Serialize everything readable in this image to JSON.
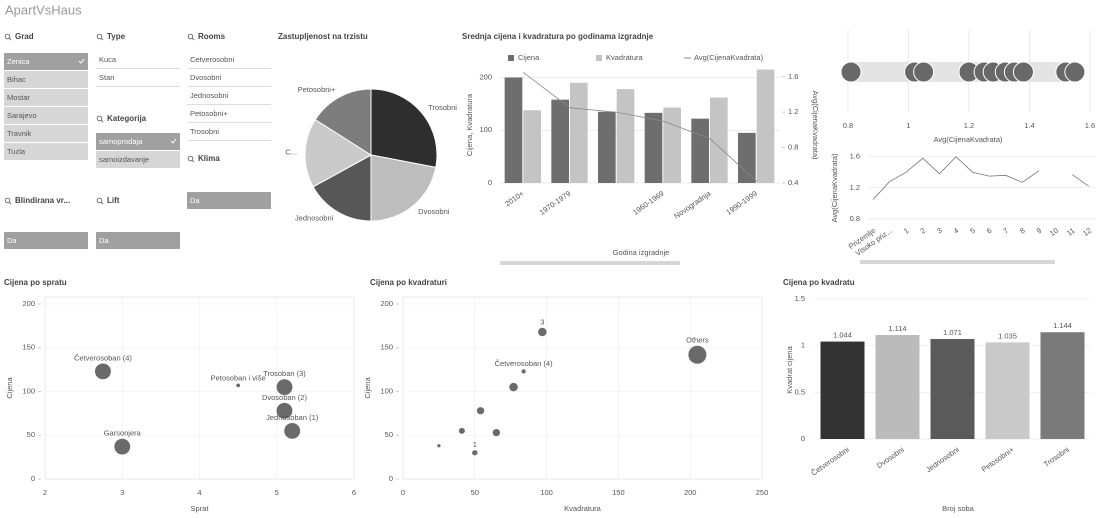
{
  "header": {
    "title": "ApartVsHaus"
  },
  "filters": [
    {
      "title": "Grad",
      "items": [
        "Zenica",
        "Bihac",
        "Mostar",
        "Sarajevo",
        "Travnik",
        "Tuzla"
      ],
      "states": [
        "selected",
        "excluded",
        "excluded",
        "excluded",
        "excluded",
        "excluded"
      ]
    },
    {
      "title": "Type",
      "items": [
        "Kuca",
        "Stan"
      ],
      "states": [
        "possible",
        "possible"
      ]
    },
    {
      "title": "Rooms",
      "items": [
        "Cetverosobni",
        "Dvosobni",
        "Jednosobni",
        "Petosobni+",
        "Trosobni"
      ],
      "states": [
        "possible",
        "possible",
        "possible",
        "possible",
        "possible"
      ]
    },
    {
      "title": "Kategorija",
      "items": [
        "samoprodaja",
        "samoizdavanje"
      ],
      "states": [
        "selected",
        "excluded"
      ]
    },
    {
      "title": "Klima",
      "items": [
        "Da"
      ],
      "states": [
        "selected"
      ]
    },
    {
      "title": "Blindirana vr...",
      "items": [
        "Da"
      ],
      "states": [
        "selected"
      ]
    },
    {
      "title": "Lift",
      "items": [
        "Da"
      ],
      "states": [
        "selected"
      ]
    }
  ],
  "chart_data": [
    {
      "type": "pie",
      "title": "Zastupljenost na trzistu",
      "categories": [
        "Trosobni",
        "Dvosobni",
        "Jednosobni",
        "C...",
        "Petosobni+"
      ],
      "values": [
        28,
        22,
        17,
        17,
        16
      ],
      "colors": [
        "#2e2e2e",
        "#bdbdbd",
        "#575757",
        "#cacaca",
        "#7d7d7d"
      ]
    },
    {
      "type": "combo",
      "title": "Srednja cijena i kvadratura po godinama izgradnje",
      "categories": [
        "2010+",
        "1970-1979",
        null,
        "1960-1969",
        "Novogradnja",
        "1990-1999"
      ],
      "series": [
        {
          "name": "Cijena",
          "color": "#6e6e6e",
          "kind": "bar",
          "values": [
            200,
            158,
            135,
            133,
            122,
            95
          ]
        },
        {
          "name": "Kvadratura",
          "color": "#c4c4c4",
          "kind": "bar",
          "values": [
            138,
            190,
            178,
            143,
            162,
            215
          ]
        },
        {
          "name": "Avg(CijenaKvadrata)",
          "color": "#8a8a8a",
          "kind": "line",
          "axis": "y2",
          "values": [
            1.65,
            1.25,
            1.2,
            1.1,
            0.9,
            0.42
          ]
        }
      ],
      "ylim": [
        0,
        218
      ],
      "yticks": [
        0,
        100,
        200
      ],
      "y2lim": [
        0.4,
        1.7
      ],
      "y2ticks": [
        0.4,
        0.8,
        1.2,
        1.6
      ],
      "ylabel": "Cijena, Kvadratura",
      "y2label": "Avg(CijenaKvadrata)",
      "xlabel": "Godina izgradnje"
    },
    {
      "type": "distribution",
      "values": [
        0.81,
        1.02,
        1.05,
        1.2,
        1.25,
        1.28,
        1.32,
        1.35,
        1.38,
        1.52,
        1.55
      ],
      "color": "#686868",
      "xlim": [
        0.8,
        1.6
      ],
      "xticks": [
        0.8,
        1,
        1.2,
        1.4,
        1.6
      ],
      "xlabel": "Avg(CijenaKvadrata)"
    },
    {
      "type": "line",
      "categories": [
        "Prizemlje",
        "Visoko priz...",
        "1",
        "2",
        "3",
        "4",
        "5",
        "6",
        "7",
        "8",
        "9",
        "10",
        "11",
        "12"
      ],
      "values": [
        1.05,
        1.28,
        1.4,
        1.58,
        1.38,
        1.6,
        1.4,
        1.35,
        1.36,
        1.27,
        1.42,
        null,
        1.37,
        1.22
      ],
      "color": "#777777",
      "ylim": [
        0.76,
        1.66
      ],
      "yticks": [
        0.8,
        1.2,
        1.6
      ],
      "ylabel": "Avg(CijenaKvadrata)"
    },
    {
      "type": "scatter",
      "title": "Cijena po spratu",
      "x": [
        2.75,
        3,
        4.5,
        5.1,
        5.1,
        5.2
      ],
      "values": [
        123,
        37,
        107,
        105,
        78,
        55
      ],
      "sizes": [
        7,
        7,
        0.4,
        7,
        7,
        7
      ],
      "labels": [
        "Četverosoban (4)",
        "Garsonjera",
        "Petosoban i više",
        "Trosoban (3)",
        "Dvosoban (2)",
        "Jednosoban (1)"
      ],
      "color": "#6a6a6a",
      "xlim": [
        2,
        6
      ],
      "xticks": [
        2,
        3,
        4,
        5,
        6
      ],
      "ylim": [
        0,
        208
      ],
      "yticks": [
        0,
        50,
        100,
        150,
        200
      ],
      "xlabel": "Sprat",
      "ylabel": "Cijena"
    },
    {
      "type": "scatter",
      "title": "Cijena po kvadraturi",
      "x": [
        97,
        84,
        77,
        54,
        41,
        65,
        50,
        25,
        205
      ],
      "values": [
        168,
        123,
        105,
        78,
        55,
        53,
        30,
        38,
        142
      ],
      "sizes": [
        2,
        0.5,
        2,
        1.5,
        1,
        1.5,
        0.8,
        0.3,
        9
      ],
      "labels": [
        "3",
        "Četverosoban (4)",
        null,
        null,
        null,
        null,
        "1",
        null,
        "Others"
      ],
      "color": "#6a6a6a",
      "xlim": [
        0,
        250
      ],
      "xticks": [
        0,
        50,
        100,
        150,
        200,
        250
      ],
      "ylim": [
        0,
        208
      ],
      "yticks": [
        0,
        50,
        100,
        150,
        200
      ],
      "xlabel": "Kvadratura",
      "ylabel": "Cijena"
    },
    {
      "type": "bar",
      "title": "Cijena po kvadratu",
      "categories": [
        "Četverosobni",
        "Dvosobni",
        "Jednosobni",
        "Petosobni+",
        "Trosobni"
      ],
      "values": [
        1.044,
        1.114,
        1.071,
        1.035,
        1.144
      ],
      "colors": [
        "#333333",
        "#bbbbbb",
        "#5a5a5a",
        "#c9c9c9",
        "#7a7a7a"
      ],
      "ylim": [
        0,
        1.5
      ],
      "yticks": [
        0,
        0.5,
        1,
        1.5
      ],
      "ylabel": "Kvadrat cijena",
      "xlabel": "Broj soba"
    }
  ]
}
